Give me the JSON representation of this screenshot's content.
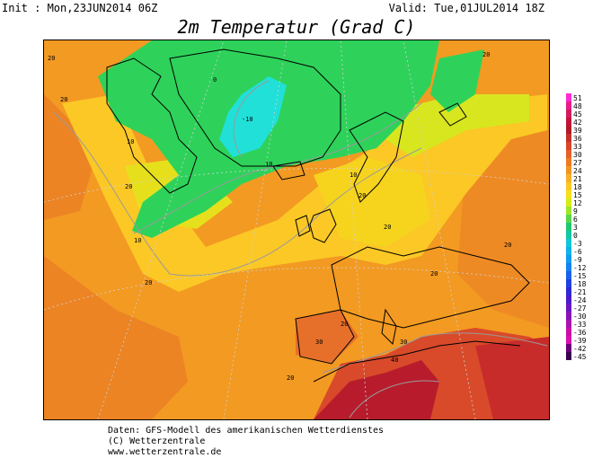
{
  "header": {
    "init": "Init : Mon,23JUN2014 06Z",
    "valid": "Valid: Tue,01JUL2014 18Z",
    "title": "2m Temperatur (Grad C)"
  },
  "credits": [
    "Daten: GFS-Modell des amerikanischen Wetterdienstes",
    "(C) Wetterzentrale",
    "www.wetterzentrale.de"
  ],
  "legend": {
    "labels": [
      "51",
      "48",
      "45",
      "42",
      "39",
      "36",
      "33",
      "30",
      "27",
      "24",
      "21",
      "18",
      "15",
      "12",
      "9",
      "6",
      "3",
      "0",
      "-3",
      "-6",
      "-9",
      "-12",
      "-15",
      "-18",
      "-21",
      "-24",
      "-27",
      "-30",
      "-33",
      "-36",
      "-39",
      "-42",
      "-45"
    ],
    "colors": [
      "#ff2bd5",
      "#e91d8c",
      "#d41a5e",
      "#c2143a",
      "#b21a28",
      "#c4302a",
      "#d8462c",
      "#e6602a",
      "#ee7a22",
      "#f39522",
      "#f7b02a",
      "#fbc826",
      "#f6e01c",
      "#d6ec14",
      "#9fe62a",
      "#5ad64a",
      "#22c870",
      "#12c8a4",
      "#12c6d8",
      "#10b2ec",
      "#109cf0",
      "#1482f0",
      "#1a62ea",
      "#2040e0",
      "#3028d4",
      "#4a1cca",
      "#6a18c2",
      "#8a14b8",
      "#aa14ae",
      "#c810a8",
      "#d810b0",
      "#6a007a",
      "#3a0050"
    ]
  },
  "map": {
    "contour_labels": [
      {
        "text": "20",
        "pos": "nw-corner"
      },
      {
        "text": "20",
        "pos": "iceland-west"
      },
      {
        "text": "10",
        "pos": "greenland-south"
      },
      {
        "text": "-10",
        "pos": "greenland-icecap"
      },
      {
        "text": "0",
        "pos": "greenland-interior"
      },
      {
        "text": "10",
        "pos": "greenland-east"
      },
      {
        "text": "20",
        "pos": "atlantic-central"
      },
      {
        "text": "10",
        "pos": "atlantic-west"
      },
      {
        "text": "20",
        "pos": "atlantic-south"
      },
      {
        "text": "20",
        "pos": "north-sea"
      },
      {
        "text": "20",
        "pos": "central-europe"
      },
      {
        "text": "20",
        "pos": "balkans"
      },
      {
        "text": "20",
        "pos": "russia"
      },
      {
        "text": "20",
        "pos": "arctic-east"
      },
      {
        "text": "20",
        "pos": "iberia"
      },
      {
        "text": "30",
        "pos": "portugal"
      },
      {
        "text": "30",
        "pos": "sardinia"
      },
      {
        "text": "40",
        "pos": "sahara"
      },
      {
        "text": "20",
        "pos": "atlantic-sw"
      },
      {
        "text": "10",
        "pos": "scandinavia"
      }
    ]
  }
}
